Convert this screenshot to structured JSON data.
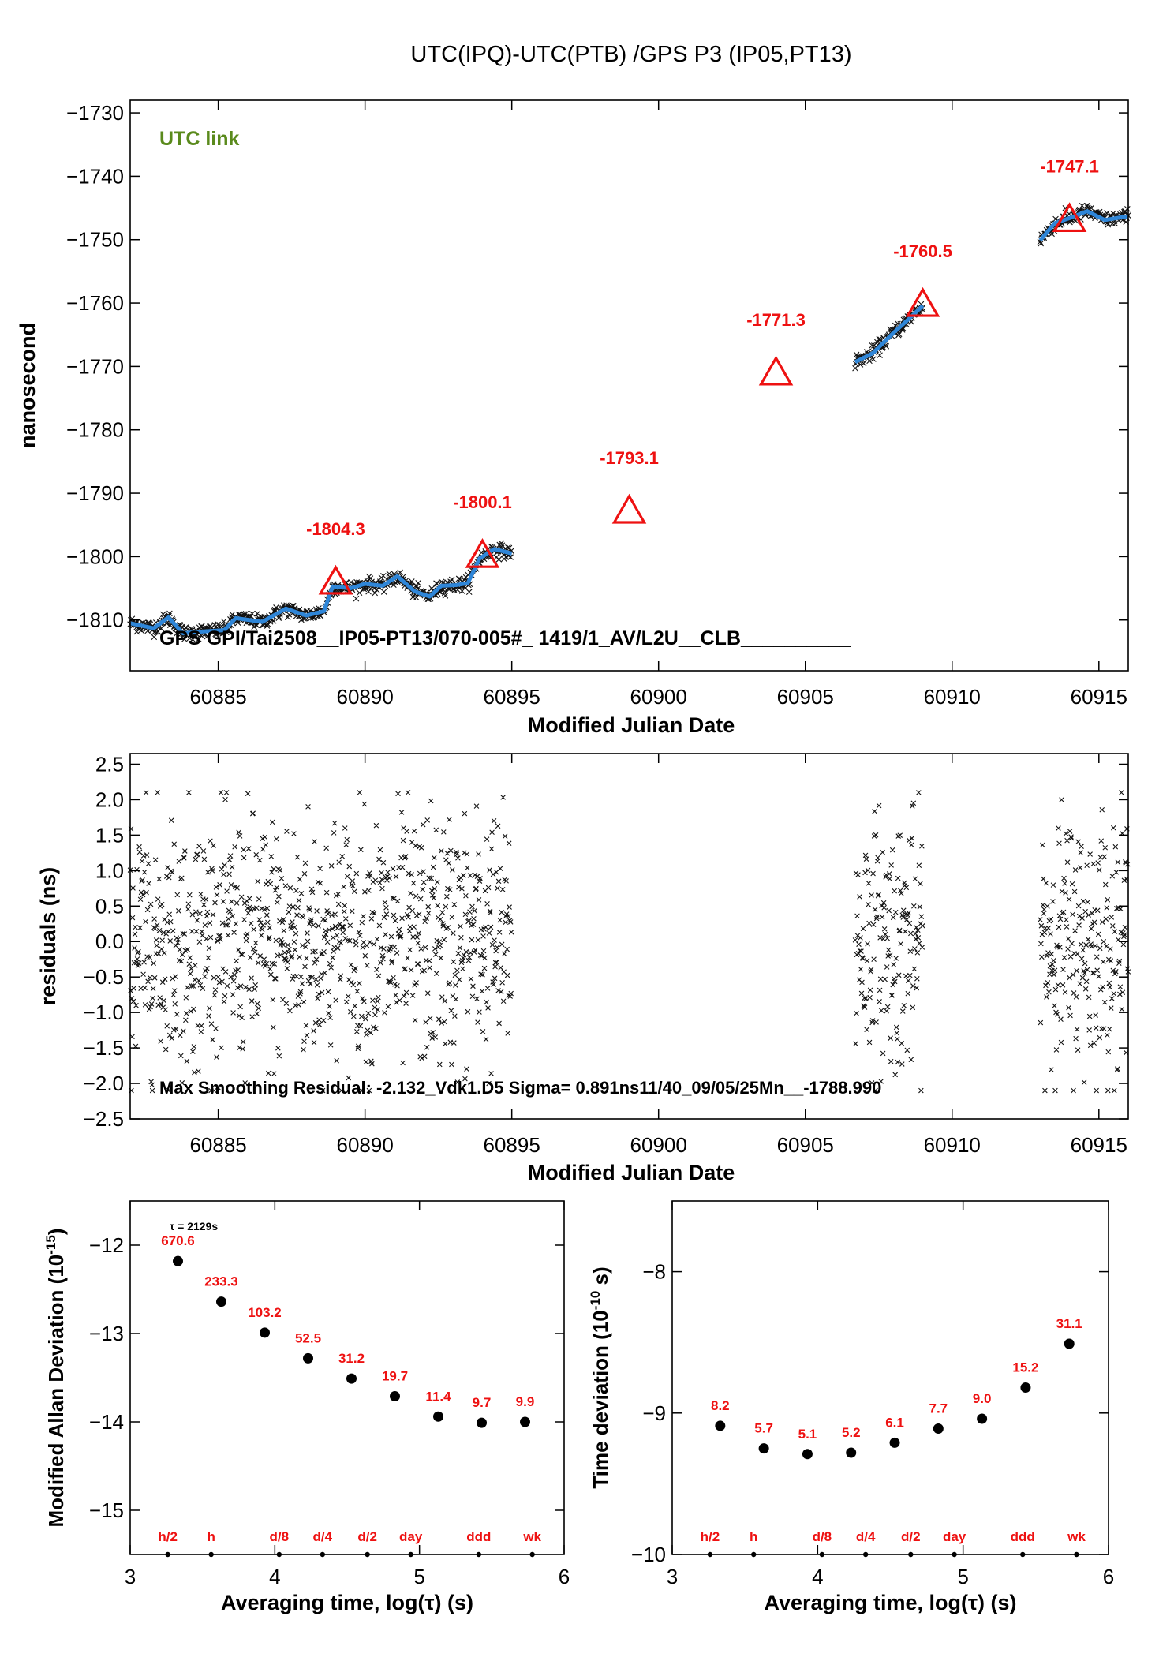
{
  "title": "UTC(IPQ)-UTC(PTB)  /GPS  P3  (IP05,PT13)",
  "colors": {
    "accent_red": "#ee1111",
    "fit_blue": "#2f86d8",
    "link_green": "#5a8a1c",
    "ink": "#000000"
  },
  "chart_data": [
    {
      "type": "scatter",
      "name": "time-transfer",
      "xlabel": "Modified Julian Date",
      "ylabel": "nanosecond",
      "xlim": [
        60882,
        60916
      ],
      "ylim": [
        -1818,
        -1728
      ],
      "xticks": [
        60885,
        60890,
        60895,
        60900,
        60905,
        60910,
        60915
      ],
      "yticks": [
        -1730,
        -1740,
        -1750,
        -1760,
        -1770,
        -1780,
        -1790,
        -1800,
        -1810
      ],
      "annotation_left": "UTC link",
      "annotation_bottom": "GPS GPI/Tai2508__IP05-PT13/070-005#_  1419/1_AV/L2U__CLB__________",
      "segments": [
        [
          60882,
          60895
        ],
        [
          60906.7,
          60909
        ],
        [
          60913,
          60916
        ]
      ],
      "fit_points": [
        [
          60882.0,
          -1810.5
        ],
        [
          60882.8,
          -1811.3
        ],
        [
          60883.3,
          -1809.6
        ],
        [
          60883.8,
          -1812.1
        ],
        [
          60884.5,
          -1811.8
        ],
        [
          60885.2,
          -1811.6
        ],
        [
          60885.6,
          -1809.7
        ],
        [
          60886.5,
          -1810.3
        ],
        [
          60887.3,
          -1808.2
        ],
        [
          60888.0,
          -1809.3
        ],
        [
          60888.6,
          -1808.6
        ],
        [
          60888.9,
          -1804.7
        ],
        [
          60889.5,
          -1805.0
        ],
        [
          60890.0,
          -1804.3
        ],
        [
          60890.6,
          -1804.6
        ],
        [
          60891.1,
          -1803.1
        ],
        [
          60891.7,
          -1805.5
        ],
        [
          60892.2,
          -1806.3
        ],
        [
          60892.6,
          -1804.6
        ],
        [
          60893.1,
          -1804.5
        ],
        [
          60893.5,
          -1804.2
        ],
        [
          60893.9,
          -1800.3
        ],
        [
          60894.4,
          -1798.8
        ],
        [
          60895.0,
          -1799.5
        ],
        [
          60906.7,
          -1769.3
        ],
        [
          60907.3,
          -1767.9
        ],
        [
          60908.0,
          -1764.7
        ],
        [
          60908.5,
          -1762.6
        ],
        [
          60909.0,
          -1760.4
        ],
        [
          60913.0,
          -1750.1
        ],
        [
          60913.5,
          -1747.4
        ],
        [
          60914.0,
          -1746.6
        ],
        [
          60914.6,
          -1745.5
        ],
        [
          60915.2,
          -1746.9
        ],
        [
          60916.0,
          -1746.3
        ]
      ],
      "markers": [
        {
          "x": 60889,
          "y": -1804.3,
          "label": "-1804.3"
        },
        {
          "x": 60894,
          "y": -1800.1,
          "label": "-1800.1"
        },
        {
          "x": 60899,
          "y": -1793.1,
          "label": "-1793.1"
        },
        {
          "x": 60904,
          "y": -1771.3,
          "label": "-1771.3"
        },
        {
          "x": 60909,
          "y": -1760.5,
          "label": "-1760.5"
        },
        {
          "x": 60914,
          "y": -1747.1,
          "label": "-1747.1"
        }
      ]
    },
    {
      "type": "scatter",
      "name": "residuals",
      "xlabel": "Modified Julian Date",
      "ylabel": "residuals (ns)",
      "xlim": [
        60882,
        60916
      ],
      "ylim": [
        -2.5,
        2.65
      ],
      "xticks": [
        60885,
        60890,
        60895,
        60900,
        60905,
        60910,
        60915
      ],
      "yticks": [
        2.5,
        2.0,
        1.5,
        1.0,
        0.5,
        0.0,
        -0.5,
        -1.0,
        -1.5,
        -2.0,
        -2.5
      ],
      "ytick_labels": [
        "2.5",
        "2.0",
        "1.5",
        "1.0",
        "0.5",
        "0.0",
        "−0.5",
        "−1.0",
        "−1.5",
        "−2.0",
        "−2.5"
      ],
      "annotation": "Max Smoothing Residual: -2.132_Vdk1.D5  Sigma= 0.891ns11/40_09/05/25Mn__-1788.990",
      "sigma_ns": 0.891,
      "segments": [
        [
          60882,
          60895
        ],
        [
          60906.7,
          60909
        ],
        [
          60913,
          60916
        ]
      ]
    },
    {
      "type": "scatter",
      "name": "modified-allan-deviation",
      "xlabel": "Averaging time, log(τ) (s)",
      "ylabel": "Modified Allan Deviation (10",
      "ylabel_exp": "-15",
      "ylabel_end": ")",
      "xlim": [
        3,
        6
      ],
      "ylim": [
        -15.5,
        -11.5
      ],
      "xticks": [
        3,
        4,
        5,
        6
      ],
      "yticks": [
        -12,
        -13,
        -14,
        -15
      ],
      "tau_note": "τ = 2129s",
      "points": [
        {
          "x": 3.33,
          "y": -12.18,
          "label": "670.6"
        },
        {
          "x": 3.63,
          "y": -12.64,
          "label": "233.3"
        },
        {
          "x": 3.93,
          "y": -12.99,
          "label": "103.2"
        },
        {
          "x": 4.23,
          "y": -13.28,
          "label": "52.5"
        },
        {
          "x": 4.53,
          "y": -13.51,
          "label": "31.2"
        },
        {
          "x": 4.83,
          "y": -13.71,
          "label": "19.7"
        },
        {
          "x": 5.13,
          "y": -13.94,
          "label": "11.4"
        },
        {
          "x": 5.43,
          "y": -14.01,
          "label": "9.7"
        },
        {
          "x": 5.73,
          "y": -14.0,
          "label": "9.9"
        }
      ],
      "reference_marks": [
        {
          "x": 3.26,
          "label": "h/2"
        },
        {
          "x": 3.56,
          "label": "h"
        },
        {
          "x": 4.03,
          "label": "d/8"
        },
        {
          "x": 4.33,
          "label": "d/4"
        },
        {
          "x": 4.64,
          "label": "d/2"
        },
        {
          "x": 4.94,
          "label": "day"
        },
        {
          "x": 5.41,
          "label": "ddd"
        },
        {
          "x": 5.78,
          "label": "wk"
        }
      ]
    },
    {
      "type": "scatter",
      "name": "time-deviation",
      "xlabel": "Averaging time, log(τ) (s)",
      "ylabel": "Time deviation (10",
      "ylabel_exp": "-10",
      "ylabel_end": " s)",
      "xlim": [
        3,
        6
      ],
      "ylim": [
        -10,
        -7.5
      ],
      "xticks": [
        3,
        4,
        5,
        6
      ],
      "yticks": [
        -8,
        -9,
        -10
      ],
      "points": [
        {
          "x": 3.33,
          "y": -9.09,
          "label": "8.2"
        },
        {
          "x": 3.63,
          "y": -9.25,
          "label": "5.7"
        },
        {
          "x": 3.93,
          "y": -9.29,
          "label": "5.1"
        },
        {
          "x": 4.23,
          "y": -9.28,
          "label": "5.2"
        },
        {
          "x": 4.53,
          "y": -9.21,
          "label": "6.1"
        },
        {
          "x": 4.83,
          "y": -9.11,
          "label": "7.7"
        },
        {
          "x": 5.13,
          "y": -9.04,
          "label": "9.0"
        },
        {
          "x": 5.43,
          "y": -8.82,
          "label": "15.2"
        },
        {
          "x": 5.73,
          "y": -8.51,
          "label": "31.1"
        }
      ],
      "reference_marks": [
        {
          "x": 3.26,
          "label": "h/2"
        },
        {
          "x": 3.56,
          "label": "h"
        },
        {
          "x": 4.03,
          "label": "d/8"
        },
        {
          "x": 4.33,
          "label": "d/4"
        },
        {
          "x": 4.64,
          "label": "d/2"
        },
        {
          "x": 4.94,
          "label": "day"
        },
        {
          "x": 5.41,
          "label": "ddd"
        },
        {
          "x": 5.78,
          "label": "wk"
        }
      ]
    }
  ]
}
